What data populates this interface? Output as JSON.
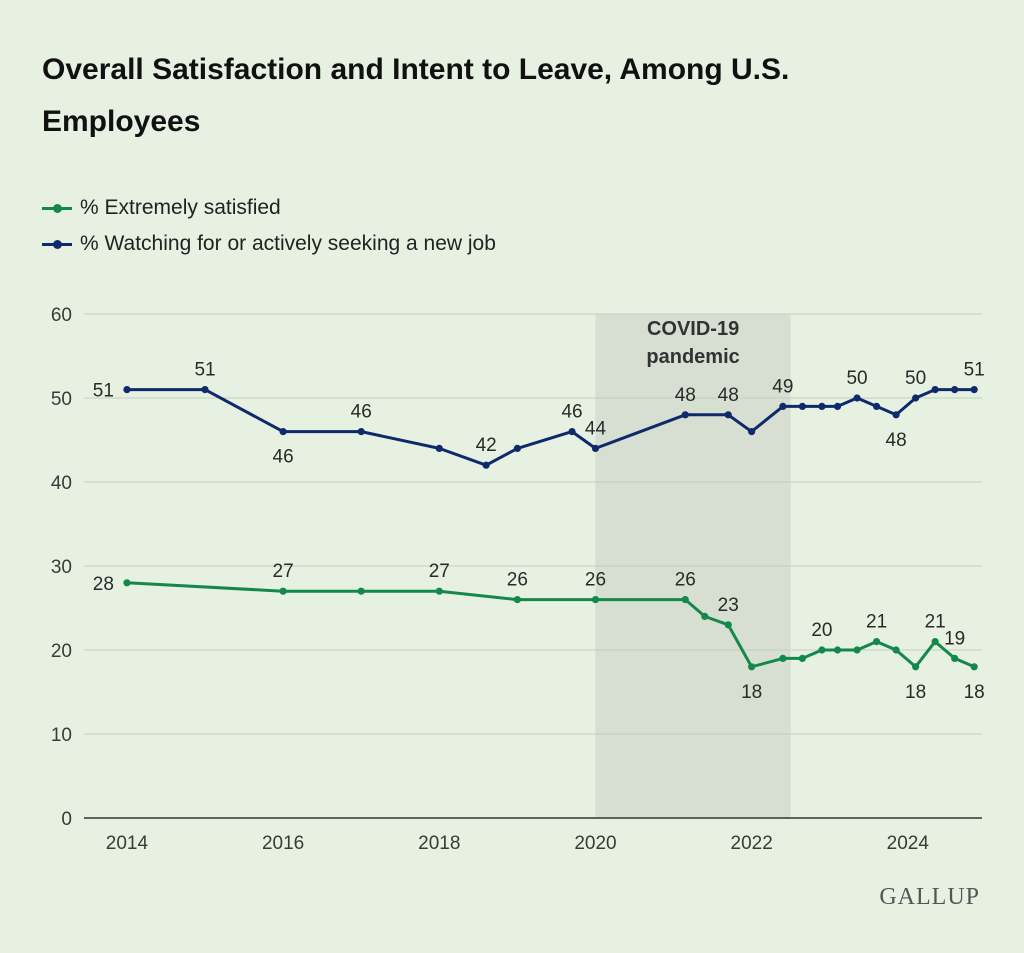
{
  "title": "Overall Satisfaction and Intent to Leave, Among U.S. Employees",
  "brand": "GALLUP",
  "colors": {
    "satisfied": "#14884a",
    "seeking": "#0f2a6b",
    "background": "#e6f1e2",
    "shade": "#d6dfd2"
  },
  "chart_data": {
    "type": "line",
    "ylim": [
      0,
      60
    ],
    "yticks": [
      0,
      10,
      20,
      30,
      40,
      50,
      60
    ],
    "xlim": [
      2013.45,
      2024.95
    ],
    "xticks": [
      2014,
      2016,
      2018,
      2020,
      2022,
      2024
    ],
    "grid": true,
    "legend_position": "top-left",
    "annotation": {
      "lines": [
        "COVID-19",
        "pandemic"
      ],
      "x_start": 2020.0,
      "x_end": 2022.5
    },
    "series": [
      {
        "name": "% Extremely satisfied",
        "key": "satisfied",
        "points": [
          [
            2014.0,
            28,
            "28",
            "left"
          ],
          [
            2016.0,
            27,
            "27",
            "above"
          ],
          [
            2017.0,
            27,
            null,
            null
          ],
          [
            2018.0,
            27,
            "27",
            "above"
          ],
          [
            2019.0,
            26,
            "26",
            "above"
          ],
          [
            2020.0,
            26,
            "26",
            "above"
          ],
          [
            2021.15,
            26,
            "26",
            "above"
          ],
          [
            2021.4,
            24,
            null,
            null
          ],
          [
            2021.7,
            23,
            "23",
            "above"
          ],
          [
            2022.0,
            18,
            "18",
            "below"
          ],
          [
            2022.4,
            19,
            null,
            null
          ],
          [
            2022.65,
            19,
            null,
            null
          ],
          [
            2022.9,
            20,
            "20",
            "above"
          ],
          [
            2023.1,
            20,
            null,
            null
          ],
          [
            2023.35,
            20,
            null,
            null
          ],
          [
            2023.6,
            21,
            "21",
            "above"
          ],
          [
            2023.85,
            20,
            null,
            null
          ],
          [
            2024.1,
            18,
            "18",
            "below"
          ],
          [
            2024.35,
            21,
            "21",
            "above"
          ],
          [
            2024.6,
            19,
            "19",
            "above"
          ],
          [
            2024.85,
            18,
            "18",
            "below"
          ]
        ]
      },
      {
        "name": "% Watching for or actively seeking a new job",
        "key": "seeking",
        "points": [
          [
            2014.0,
            51,
            "51",
            "left"
          ],
          [
            2015.0,
            51,
            "51",
            "above"
          ],
          [
            2016.0,
            46,
            "46",
            "below"
          ],
          [
            2017.0,
            46,
            "46",
            "above"
          ],
          [
            2018.0,
            44,
            null,
            null
          ],
          [
            2018.6,
            42,
            "42",
            "above"
          ],
          [
            2019.0,
            44,
            null,
            null
          ],
          [
            2019.7,
            46,
            "46",
            "above"
          ],
          [
            2020.0,
            44,
            "44",
            "above"
          ],
          [
            2021.15,
            48,
            "48",
            "above"
          ],
          [
            2021.7,
            48,
            "48",
            "above"
          ],
          [
            2022.0,
            46,
            null,
            null
          ],
          [
            2022.4,
            49,
            "49",
            "above"
          ],
          [
            2022.65,
            49,
            null,
            null
          ],
          [
            2022.9,
            49,
            null,
            null
          ],
          [
            2023.1,
            49,
            null,
            null
          ],
          [
            2023.35,
            50,
            "50",
            "above"
          ],
          [
            2023.6,
            49,
            null,
            null
          ],
          [
            2023.85,
            48,
            "48",
            "below"
          ],
          [
            2024.1,
            50,
            "50",
            "above"
          ],
          [
            2024.35,
            51,
            null,
            null
          ],
          [
            2024.6,
            51,
            null,
            null
          ],
          [
            2024.85,
            51,
            "51",
            "above"
          ]
        ]
      }
    ]
  }
}
